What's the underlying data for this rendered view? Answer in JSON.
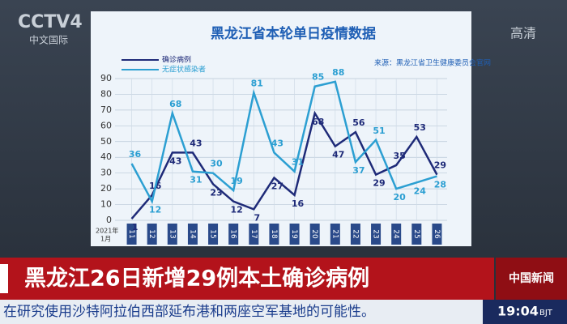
{
  "channel": {
    "logo": "CCTV4",
    "sub": "中文国际",
    "hd": "高清"
  },
  "chart_data": {
    "type": "line",
    "title": "黑龙江省本轮单日疫情数据",
    "source": "来源：黑龙江省卫生健康委员会官网",
    "year_label": "2021年",
    "month_label": "1月",
    "categories": [
      "11",
      "12",
      "13",
      "14",
      "15",
      "16",
      "17",
      "18",
      "19",
      "20",
      "21",
      "22",
      "23",
      "24",
      "25",
      "26"
    ],
    "series": [
      {
        "name": "确诊病例",
        "color": "#1e2a78",
        "values": [
          1,
          16,
          43,
          43,
          23,
          12,
          7,
          27,
          16,
          68,
          47,
          56,
          29,
          35,
          53,
          29
        ]
      },
      {
        "name": "无症状感染者",
        "color": "#2c9fd2",
        "values": [
          36,
          12,
          68,
          31,
          30,
          19,
          81,
          43,
          31,
          85,
          88,
          37,
          51,
          20,
          24,
          28
        ]
      }
    ],
    "ylim": [
      0,
      90
    ],
    "yticks": [
      0,
      10,
      20,
      30,
      40,
      50,
      60,
      70,
      80,
      90
    ],
    "grid": true
  },
  "banner": {
    "headline": "黑龙江26日新增29例本土确诊病例",
    "logo": "中国新闻"
  },
  "ticker": {
    "text": "在研究使用沙特阿拉伯西部延布港和两座空军基地的可能性。",
    "time": "19:04",
    "zone": "BJT"
  }
}
